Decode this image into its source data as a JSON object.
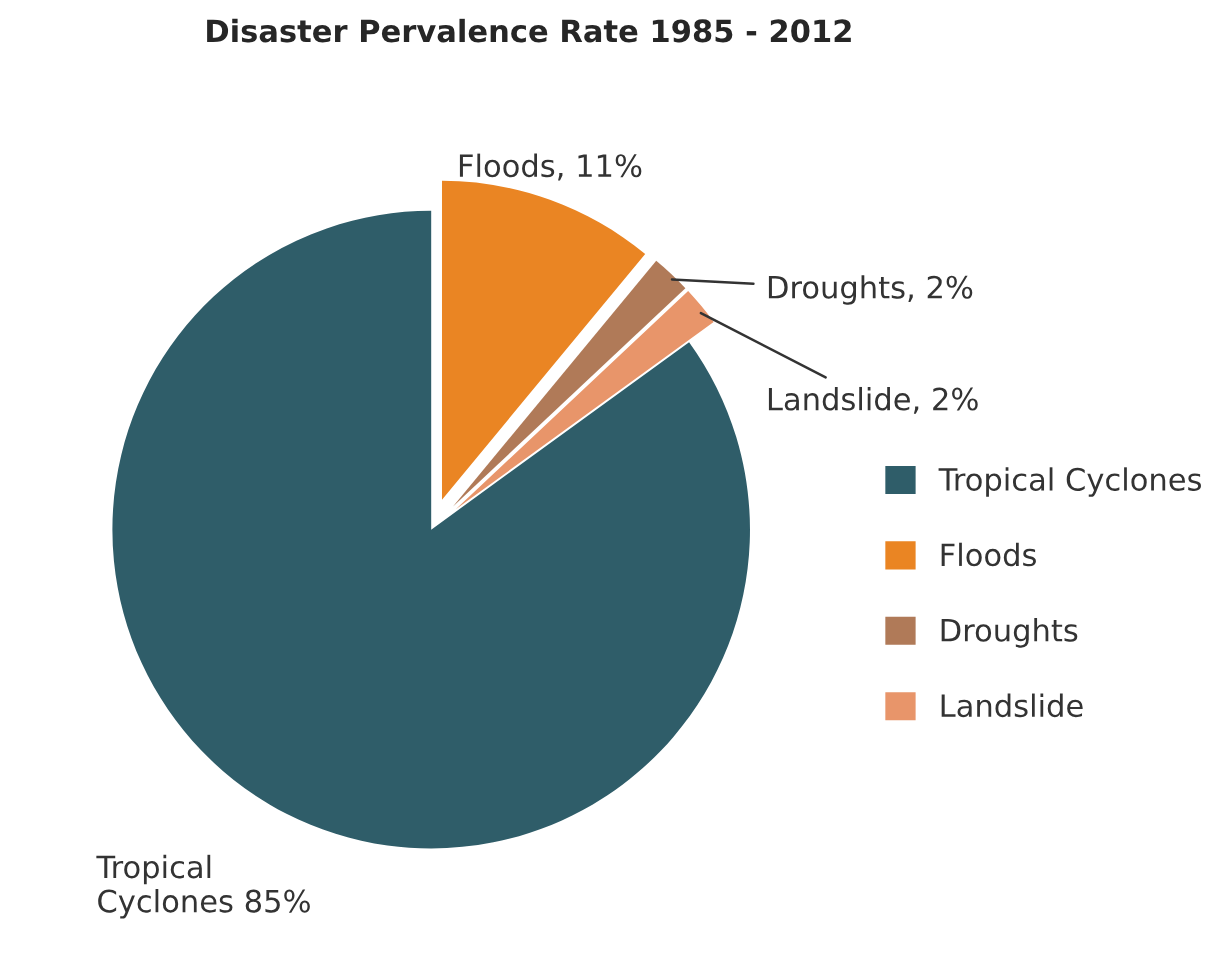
{
  "chart_data": {
    "type": "pie",
    "title": "Disaster Pervalence Rate 1985 - 2012",
    "categories": [
      "Tropical Cyclones",
      "Floods",
      "Droughts",
      "Landslide"
    ],
    "values": [
      85,
      11,
      2,
      2
    ],
    "colors": [
      "#2f5d69",
      "#ea8523",
      "#b07a58",
      "#e8956a"
    ],
    "value_labels": [
      "Tropical\nCyclones 85%",
      "Floods, 11%",
      "Droughts, 2%",
      "Landslide, 2%"
    ],
    "legend": "right"
  }
}
